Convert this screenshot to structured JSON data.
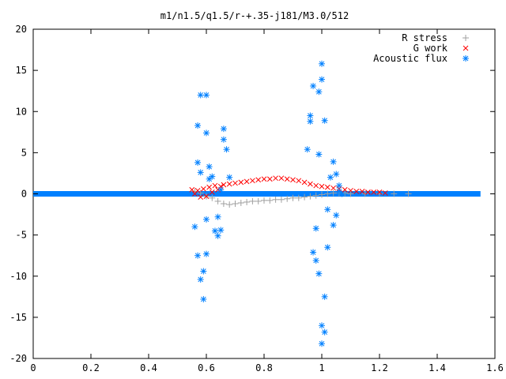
{
  "chart_data": {
    "type": "scatter",
    "title": "m1/n1.5/q1.5/r-+.35-j181/M3.0/512",
    "xlabel": "",
    "ylabel": "",
    "xlim": [
      0,
      1.6
    ],
    "ylim": [
      -20,
      20
    ],
    "x_ticks": [
      "0",
      "0.2",
      "0.4",
      "0.6",
      "0.8",
      "1",
      "1.2",
      "1.4",
      "1.6"
    ],
    "y_ticks": [
      "20",
      "15",
      "10",
      "5",
      "0",
      "-5",
      "-10",
      "-15",
      "-20"
    ],
    "grid": false,
    "legend_position": "top-right",
    "series": [
      {
        "name": "R stress",
        "color": "#a0a0a0",
        "marker": "plus",
        "x": [
          0.56,
          0.58,
          0.6,
          0.62,
          0.64,
          0.66,
          0.68,
          0.7,
          0.72,
          0.74,
          0.76,
          0.78,
          0.8,
          0.82,
          0.84,
          0.86,
          0.88,
          0.9,
          0.92,
          0.94,
          0.96,
          0.98,
          1.0,
          1.02,
          1.04,
          1.06,
          1.08,
          1.1,
          1.15,
          1.2,
          1.25,
          1.3
        ],
        "y": [
          0.3,
          0.1,
          -0.3,
          -0.5,
          -0.9,
          -1.2,
          -1.3,
          -1.2,
          -1.1,
          -1.0,
          -0.9,
          -0.9,
          -0.8,
          -0.8,
          -0.7,
          -0.7,
          -0.6,
          -0.5,
          -0.5,
          -0.4,
          -0.3,
          -0.2,
          -0.1,
          0.0,
          0.1,
          0.1,
          0.1,
          0.0,
          0.0,
          0.0,
          0.0,
          0.0
        ]
      },
      {
        "name": "G work",
        "color": "#ff0000",
        "marker": "cross",
        "x": [
          0.55,
          0.56,
          0.57,
          0.58,
          0.59,
          0.6,
          0.61,
          0.62,
          0.63,
          0.64,
          0.65,
          0.66,
          0.68,
          0.7,
          0.72,
          0.74,
          0.76,
          0.78,
          0.8,
          0.82,
          0.84,
          0.86,
          0.88,
          0.9,
          0.92,
          0.94,
          0.96,
          0.98,
          1.0,
          1.02,
          1.04,
          1.06,
          1.08,
          1.1,
          1.12,
          1.14,
          1.16,
          1.18,
          1.2,
          1.22
        ],
        "y": [
          0.5,
          0.0,
          0.4,
          -0.4,
          0.6,
          -0.3,
          0.8,
          0.2,
          1.0,
          0.5,
          0.9,
          1.1,
          1.2,
          1.3,
          1.4,
          1.5,
          1.6,
          1.7,
          1.8,
          1.8,
          1.9,
          1.9,
          1.8,
          1.7,
          1.6,
          1.4,
          1.2,
          1.0,
          0.9,
          0.8,
          0.7,
          0.6,
          0.5,
          0.4,
          0.3,
          0.3,
          0.2,
          0.2,
          0.2,
          0.1
        ]
      },
      {
        "name": "Acoustic flux",
        "color": "#0080ff",
        "marker": "star",
        "x": [
          0.56,
          0.57,
          0.57,
          0.57,
          0.58,
          0.58,
          0.58,
          0.59,
          0.59,
          0.6,
          0.6,
          0.6,
          0.6,
          0.61,
          0.61,
          0.62,
          0.63,
          0.64,
          0.64,
          0.65,
          0.65,
          0.66,
          0.66,
          0.67,
          0.68,
          0.95,
          0.96,
          0.96,
          0.97,
          0.97,
          0.98,
          0.98,
          0.99,
          0.99,
          0.99,
          1.0,
          1.0,
          1.0,
          1.0,
          1.01,
          1.01,
          1.01,
          1.02,
          1.02,
          1.03,
          1.04,
          1.04,
          1.05,
          1.05,
          1.06,
          1.06,
          1.07
        ],
        "y": [
          -4.0,
          8.3,
          3.8,
          -7.5,
          -10.4,
          2.6,
          12.0,
          -12.8,
          -9.4,
          12.0,
          7.4,
          -3.1,
          -7.3,
          3.3,
          1.8,
          2.1,
          -4.5,
          -5.1,
          -2.8,
          0.5,
          -4.4,
          7.9,
          6.6,
          5.4,
          2.0,
          5.4,
          8.8,
          9.5,
          -7.1,
          13.1,
          -8.1,
          -4.2,
          12.4,
          4.8,
          -9.7,
          15.8,
          13.9,
          -16.0,
          -18.2,
          8.9,
          -16.8,
          -12.5,
          -1.9,
          -6.5,
          2.0,
          3.9,
          -3.8,
          -2.6,
          2.4,
          1.0,
          0.3,
          0.0
        ]
      }
    ]
  }
}
